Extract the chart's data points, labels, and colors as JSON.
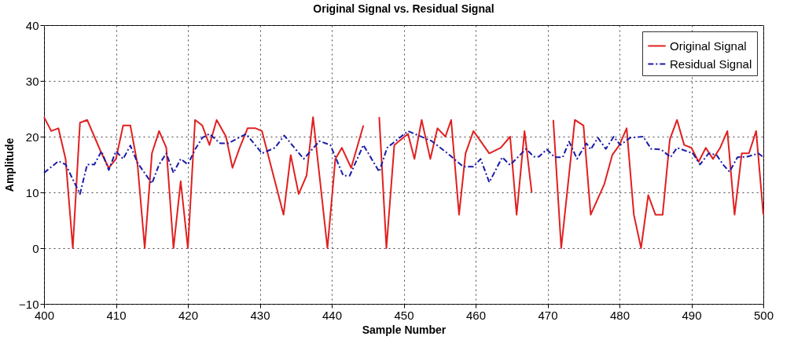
{
  "chart_data": {
    "type": "line",
    "title": "Original Signal vs. Residual Signal",
    "xlabel": "Sample Number",
    "ylabel": "Amplitude",
    "xlim": [
      400,
      500
    ],
    "xticks": [
      400,
      410,
      420,
      430,
      440,
      450,
      460,
      470,
      480,
      490,
      500
    ],
    "ylim": [
      -10,
      40
    ],
    "yticks": [
      -10,
      0,
      10,
      20,
      30,
      40
    ],
    "grid": true,
    "legend": "top right",
    "marker": "none",
    "series": [
      {
        "name": "Original Signal",
        "color": "#e02020",
        "line_style": "solid",
        "x": [
          400,
          401,
          402,
          403,
          404,
          405,
          406,
          407,
          408,
          409,
          410,
          411,
          412,
          413,
          414,
          415,
          416,
          417,
          418,
          419,
          420,
          421,
          422,
          423,
          424,
          425.3,
          426.2,
          427.2,
          428.3,
          429.4,
          430.3,
          431.8,
          433.3,
          434.3,
          435.4,
          436.5,
          437.4,
          439.4,
          440.5,
          441.4,
          442.7,
          444.4,
          445.5,
          446.6,
          447.6,
          448.7,
          450.6,
          451.5,
          452.5,
          453.7,
          454.7,
          455.8,
          456.6,
          457.7,
          458.6,
          459.7,
          461.9,
          463.5,
          464.8,
          465.7,
          466.8,
          467.8,
          469.3,
          470.8,
          471.9,
          473.8,
          475,
          476,
          477.9,
          479,
          480,
          481,
          482,
          483,
          484,
          485,
          486,
          487,
          488,
          489,
          490,
          491,
          492,
          493,
          494,
          495,
          496,
          497,
          498,
          499,
          500
        ],
        "values": [
          23.5,
          21,
          21.5,
          16,
          0,
          22.5,
          23,
          20,
          17,
          14.4,
          16,
          22,
          22,
          15,
          0,
          17,
          21,
          18,
          0,
          12,
          0,
          23,
          22,
          18.5,
          23,
          20,
          14.4,
          18,
          21.5,
          21.5,
          21,
          13.5,
          6,
          16.7,
          9.7,
          13,
          23.5,
          0,
          16,
          18,
          14.4,
          22,
          null,
          23.5,
          0,
          18.5,
          20.5,
          16,
          23,
          16,
          21.5,
          20,
          23,
          6,
          17,
          21,
          17,
          18,
          20,
          6,
          21,
          10,
          null,
          23,
          0,
          23,
          22,
          6,
          11.5,
          16.7,
          18.5,
          21.5,
          6,
          0,
          9.5,
          6,
          6,
          19.5,
          23,
          18.5,
          18,
          15.5,
          18,
          16,
          18,
          21,
          6,
          17,
          17,
          21,
          6
        ]
      },
      {
        "name": "Residual Signal",
        "color": "#1a1aa8",
        "line_style": "dashed",
        "x": [
          400,
          402,
          403,
          405,
          406,
          407,
          408,
          409,
          410,
          411,
          412,
          413,
          415,
          416,
          417,
          418,
          419,
          420,
          421,
          422,
          423,
          424.5,
          425.6,
          428.1,
          430.3,
          432.1,
          433.4,
          436.1,
          438.3,
          439.8,
          441.6,
          442.5,
          444.4,
          446.6,
          447.7,
          450.6,
          453.9,
          456.1,
          458.3,
          459.7,
          460.7,
          461.9,
          463.7,
          464.8,
          467,
          468.1,
          468.8,
          469.9,
          471,
          472.1,
          473,
          474.1,
          475.4,
          476,
          477,
          478.1,
          479.2,
          480.1,
          481.5,
          483.3,
          484.4,
          485.8,
          487.1,
          488,
          490.2,
          491.2,
          492.4,
          493.5,
          494.4,
          495.3,
          496.4,
          497.8,
          499.3,
          500
        ],
        "values": [
          13.5,
          15.6,
          15,
          9.7,
          15,
          15,
          17.4,
          14,
          17.4,
          16,
          18.4,
          15.3,
          11.6,
          15,
          17,
          13.5,
          16,
          15,
          17.7,
          19.8,
          20.5,
          18.8,
          18.8,
          20.5,
          17,
          18,
          20.2,
          16,
          19.2,
          18.5,
          13,
          13,
          18.5,
          13.7,
          18,
          21,
          19.2,
          17,
          14.6,
          14.6,
          16,
          11.8,
          16.3,
          14.9,
          17.8,
          16.4,
          16.4,
          17.7,
          16.3,
          16.3,
          19.1,
          16,
          18.8,
          17.7,
          19.8,
          17.8,
          20,
          18.5,
          19.8,
          20,
          17.8,
          17.7,
          16.3,
          18,
          17,
          15,
          17,
          16.7,
          15,
          13.7,
          16.3,
          16.4,
          17,
          16.3
        ]
      }
    ]
  }
}
